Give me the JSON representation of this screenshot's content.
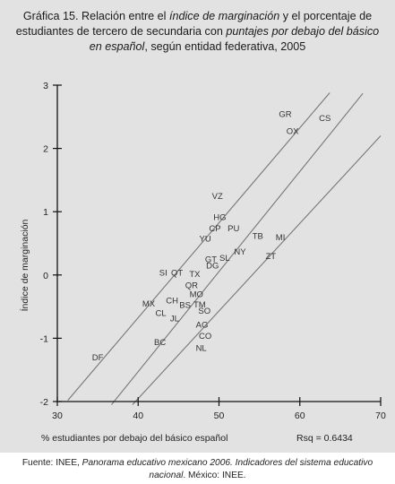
{
  "title": {
    "part1": "Gráfica 15. Relación entre el ",
    "part2": "índice de marginación",
    "part3": " y el porcentaje de estudiantes de tercero de secundaria con ",
    "part4": "puntajes por debajo del básico en español",
    "part5": ", según entidad federativa, 2005"
  },
  "footer": {
    "part1": "Fuente: INEE, ",
    "part2": "Panorama educativo mexicano 2006. Indicadores del sistema educativo nacional",
    "part3": ". México: INEE."
  },
  "chart_data": {
    "type": "scatter",
    "xlabel": "% estudiantes por debajo del básico español",
    "ylabel": "Índice de marginación",
    "xlim": [
      30,
      70
    ],
    "ylim": [
      -2,
      3
    ],
    "xticks": [
      "30",
      "40",
      "50",
      "60",
      "70"
    ],
    "yticks": [
      "-2",
      "-1",
      "0",
      "1",
      "2",
      "3"
    ],
    "annotation": "Rsq = 0.6434",
    "points": [
      {
        "label": "GR",
        "x": 58.2,
        "y": 2.55
      },
      {
        "label": "CS",
        "x": 63.1,
        "y": 2.48
      },
      {
        "label": "OX",
        "x": 59.1,
        "y": 2.28
      },
      {
        "label": "VZ",
        "x": 49.8,
        "y": 1.25
      },
      {
        "label": "HG",
        "x": 50.1,
        "y": 0.92
      },
      {
        "label": "CP",
        "x": 49.5,
        "y": 0.74
      },
      {
        "label": "PU",
        "x": 51.8,
        "y": 0.74
      },
      {
        "label": "YU",
        "x": 48.3,
        "y": 0.58
      },
      {
        "label": "TB",
        "x": 54.8,
        "y": 0.62
      },
      {
        "label": "MI",
        "x": 57.6,
        "y": 0.6
      },
      {
        "label": "NY",
        "x": 52.6,
        "y": 0.37
      },
      {
        "label": "ZT",
        "x": 56.4,
        "y": 0.3
      },
      {
        "label": "GT",
        "x": 49.0,
        "y": 0.25
      },
      {
        "label": "SL",
        "x": 50.7,
        "y": 0.27
      },
      {
        "label": "DG",
        "x": 49.2,
        "y": 0.15
      },
      {
        "label": "SI",
        "x": 43.1,
        "y": 0.04
      },
      {
        "label": "QT",
        "x": 44.8,
        "y": 0.04
      },
      {
        "label": "TX",
        "x": 47.0,
        "y": 0.02
      },
      {
        "label": "QR",
        "x": 46.6,
        "y": -0.16
      },
      {
        "label": "MO",
        "x": 47.2,
        "y": -0.3
      },
      {
        "label": "CH",
        "x": 44.2,
        "y": -0.4
      },
      {
        "label": "MX",
        "x": 41.3,
        "y": -0.45
      },
      {
        "label": "BS",
        "x": 45.8,
        "y": -0.47
      },
      {
        "label": "TM",
        "x": 47.6,
        "y": -0.46
      },
      {
        "label": "CL",
        "x": 42.8,
        "y": -0.6
      },
      {
        "label": "SO",
        "x": 48.2,
        "y": -0.56
      },
      {
        "label": "JL",
        "x": 44.5,
        "y": -0.68
      },
      {
        "label": "AG",
        "x": 47.9,
        "y": -0.78
      },
      {
        "label": "CO",
        "x": 48.3,
        "y": -0.96
      },
      {
        "label": "BC",
        "x": 42.7,
        "y": -1.06
      },
      {
        "label": "NL",
        "x": 47.8,
        "y": -1.15
      },
      {
        "label": "DF",
        "x": 35.0,
        "y": -1.3
      }
    ],
    "lines": [
      {
        "name": "upper",
        "x": [
          31.3,
          63.7
        ],
        "y": [
          -1.98,
          2.88
        ]
      },
      {
        "name": "fit",
        "x": [
          36.7,
          67.8
        ],
        "y": [
          -2.05,
          2.87
        ]
      },
      {
        "name": "lower",
        "x": [
          39.3,
          70.0
        ],
        "y": [
          -2.05,
          2.2
        ]
      }
    ]
  }
}
